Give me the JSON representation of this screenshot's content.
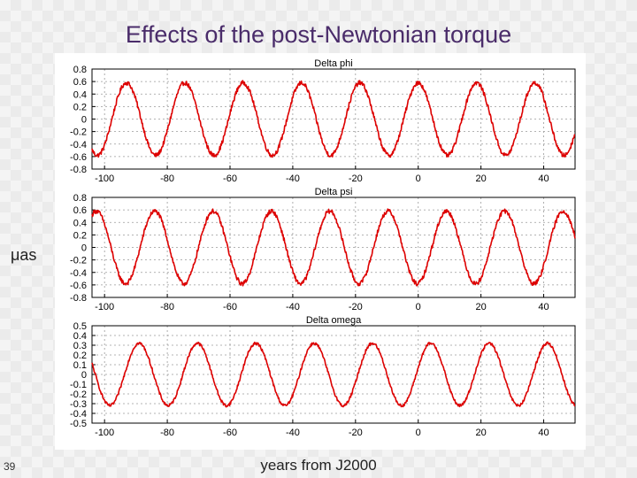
{
  "slide": {
    "title": "Effects of the post-Newtonian torque",
    "unit_label": "μas",
    "x_axis_label": "years from J2000",
    "slide_number": "39"
  },
  "colors": {
    "curve": "#dd0000",
    "grid": "#9a9a9a",
    "axis": "#000000",
    "title": "#4a2c6a"
  },
  "chart_data": [
    {
      "type": "line",
      "title": "Delta phi",
      "xlabel": "years from J2000",
      "ylabel": "μas",
      "xlim": [
        -104,
        50
      ],
      "ylim": [
        -0.8,
        0.8
      ],
      "xticks": [
        -100,
        -80,
        -60,
        -40,
        -20,
        0,
        20,
        40
      ],
      "xtick_labels": [
        "-100",
        "-80",
        "-60",
        "-40",
        "-20",
        "0",
        "20",
        "40"
      ],
      "yticks": [
        0.8,
        0.6,
        0.4,
        0.2,
        0,
        -0.2,
        -0.4,
        -0.6,
        -0.8
      ],
      "ytick_labels": [
        "0.8",
        "0.6",
        "0.4",
        "0.2",
        "0",
        "-0.2",
        "-0.4",
        "-0.6",
        "-0.8"
      ],
      "grid": true,
      "series": [
        {
          "name": "Delta phi",
          "model": "sinusoid",
          "amplitude": 0.58,
          "period_years": 18.6,
          "peak_at_years": -93,
          "noise_amplitude": 0.035
        }
      ]
    },
    {
      "type": "line",
      "title": "Delta psi",
      "xlabel": "years from J2000",
      "ylabel": "μas",
      "xlim": [
        -104,
        50
      ],
      "ylim": [
        -0.8,
        0.8
      ],
      "xticks": [
        -100,
        -80,
        -60,
        -40,
        -20,
        0,
        20,
        40
      ],
      "xtick_labels": [
        "-100",
        "-80",
        "-60",
        "-40",
        "-20",
        "0",
        "20",
        "40"
      ],
      "yticks": [
        0.8,
        0.6,
        0.4,
        0.2,
        0,
        -0.2,
        -0.4,
        -0.6,
        -0.8
      ],
      "ytick_labels": [
        "0.8",
        "0.6",
        "0.4",
        "0.2",
        "0",
        "-0.2",
        "-0.4",
        "-0.6",
        "-0.8"
      ],
      "grid": true,
      "series": [
        {
          "name": "Delta psi",
          "model": "sinusoid",
          "amplitude": 0.58,
          "period_years": 18.6,
          "peak_at_years": -84,
          "noise_amplitude": 0.035
        }
      ]
    },
    {
      "type": "line",
      "title": "Delta omega",
      "xlabel": "years from J2000",
      "ylabel": "μas",
      "xlim": [
        -104,
        50
      ],
      "ylim": [
        -0.5,
        0.5
      ],
      "xticks": [
        -100,
        -80,
        -60,
        -40,
        -20,
        0,
        20,
        40
      ],
      "xtick_labels": [
        "-100",
        "-80",
        "-60",
        "-40",
        "-20",
        "0",
        "20",
        "40"
      ],
      "yticks": [
        0.5,
        0.4,
        0.3,
        0.2,
        0.1,
        0,
        -0.1,
        -0.2,
        -0.3,
        -0.4,
        -0.5
      ],
      "ytick_labels": [
        "0.5",
        "0.4",
        "0.3",
        "0.2",
        "0.1",
        "0",
        "-0.1",
        "-0.2",
        "-0.3",
        "-0.4",
        "-0.5"
      ],
      "grid": true,
      "series": [
        {
          "name": "Delta omega",
          "model": "sinusoid",
          "amplitude": 0.32,
          "period_years": 18.6,
          "peak_at_years": -89,
          "noise_amplitude": 0.015
        }
      ]
    }
  ]
}
